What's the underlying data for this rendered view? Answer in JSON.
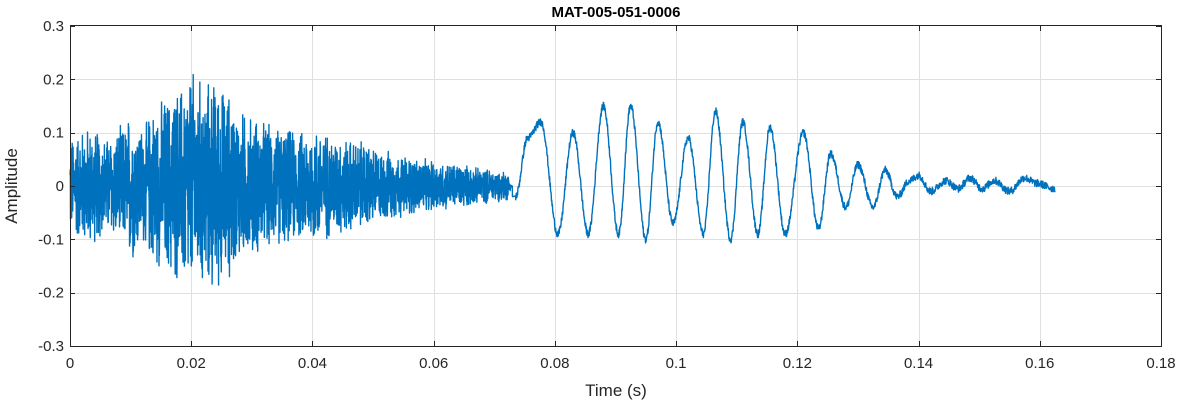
{
  "chart_data": {
    "type": "line",
    "title": "MAT-005-051-0006",
    "xlabel": "Time (s)",
    "ylabel": "Amplitude",
    "xlim": [
      0,
      0.18
    ],
    "ylim": [
      -0.3,
      0.3
    ],
    "x_ticks": [
      0,
      0.02,
      0.04,
      0.06,
      0.08,
      0.1,
      0.12,
      0.14,
      0.16,
      0.18
    ],
    "x_tick_labels": [
      "0",
      "0.02",
      "0.04",
      "0.06",
      "0.08",
      "0.1",
      "0.12",
      "0.14",
      "0.16",
      "0.18"
    ],
    "y_ticks": [
      -0.3,
      -0.2,
      -0.1,
      0,
      0.1,
      0.2,
      0.3
    ],
    "y_tick_labels": [
      "-0.3",
      "-0.2",
      "-0.1",
      "0",
      "0.1",
      "0.2",
      "0.3"
    ],
    "grid": true,
    "legend": "none",
    "series": [
      {
        "color": "#0072BD",
        "envelope": [
          [
            0.0,
            0.1
          ],
          [
            0.003,
            0.12
          ],
          [
            0.006,
            0.1
          ],
          [
            0.009,
            0.12
          ],
          [
            0.01,
            0.15
          ],
          [
            0.012,
            0.12
          ],
          [
            0.014,
            0.16
          ],
          [
            0.016,
            0.18
          ],
          [
            0.018,
            0.2
          ],
          [
            0.02,
            0.23
          ],
          [
            0.022,
            0.21
          ],
          [
            0.024,
            0.21
          ],
          [
            0.026,
            0.19
          ],
          [
            0.028,
            0.15
          ],
          [
            0.03,
            0.14
          ],
          [
            0.034,
            0.12
          ],
          [
            0.038,
            0.11
          ],
          [
            0.04,
            0.12
          ],
          [
            0.044,
            0.1
          ],
          [
            0.048,
            0.09
          ],
          [
            0.052,
            0.07
          ],
          [
            0.056,
            0.06
          ],
          [
            0.06,
            0.05
          ],
          [
            0.064,
            0.045
          ],
          [
            0.068,
            0.035
          ],
          [
            0.072,
            0.03
          ],
          [
            0.073,
            0.0
          ]
        ],
        "oscillation": [
          [
            0.0735,
            -0.02
          ],
          [
            0.0755,
            0.09
          ],
          [
            0.0777,
            0.12
          ],
          [
            0.0805,
            -0.09
          ],
          [
            0.083,
            0.1
          ],
          [
            0.0855,
            -0.09
          ],
          [
            0.088,
            0.15
          ],
          [
            0.0905,
            -0.09
          ],
          [
            0.0925,
            0.15
          ],
          [
            0.095,
            -0.1
          ],
          [
            0.097,
            0.12
          ],
          [
            0.0995,
            -0.07
          ],
          [
            0.102,
            0.09
          ],
          [
            0.1045,
            -0.09
          ],
          [
            0.1065,
            0.14
          ],
          [
            0.109,
            -0.1
          ],
          [
            0.111,
            0.12
          ],
          [
            0.1135,
            -0.09
          ],
          [
            0.1155,
            0.11
          ],
          [
            0.118,
            -0.09
          ],
          [
            0.121,
            0.1
          ],
          [
            0.1235,
            -0.08
          ],
          [
            0.1255,
            0.06
          ],
          [
            0.128,
            -0.04
          ],
          [
            0.13,
            0.04
          ],
          [
            0.1325,
            -0.04
          ],
          [
            0.1345,
            0.03
          ],
          [
            0.1365,
            -0.02
          ],
          [
            0.1385,
            0.01
          ],
          [
            0.14,
            0.02
          ],
          [
            0.142,
            -0.01
          ],
          [
            0.1445,
            0.01
          ],
          [
            0.1465,
            -0.005
          ],
          [
            0.1485,
            0.015
          ],
          [
            0.1505,
            -0.005
          ],
          [
            0.1525,
            0.01
          ],
          [
            0.155,
            -0.01
          ],
          [
            0.1575,
            0.015
          ],
          [
            0.1595,
            0.005
          ],
          [
            0.1625,
            -0.005
          ]
        ]
      }
    ]
  }
}
